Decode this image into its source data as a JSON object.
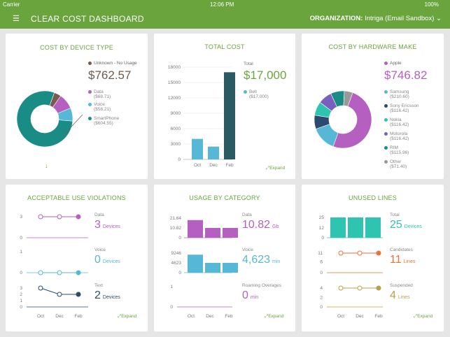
{
  "statusbar": {
    "carrier": "Carrier",
    "time": "12:06 PM",
    "battery": "100%"
  },
  "header": {
    "menu_icon": "hamburger-icon",
    "title": "CLEAR COST DASHBOARD",
    "org_label": "ORGANIZATION:",
    "org_value": "Intriga (Email Sandbox)"
  },
  "device_type": {
    "title": "COST BY DEVICE TYPE",
    "total": "$762.57",
    "legend": [
      {
        "name": "Unknown - No Usage",
        "value": "",
        "color": "#7a5a4a"
      },
      {
        "name": "Data",
        "value": "($68.71)",
        "color": "#b55fc0"
      },
      {
        "name": "Voice",
        "value": "($58.21)",
        "color": "#56b8d6"
      },
      {
        "name": "SmartPhone",
        "value": "($604.55)",
        "color": "#1a8c86"
      }
    ],
    "arrow": "↓"
  },
  "total_cost": {
    "title": "TOTAL COST",
    "total_label": "Total",
    "total": "$17,000",
    "legend_name": "Bell",
    "legend_value": "($17,000)",
    "expand": "⤢Expand"
  },
  "hardware": {
    "title": "COST BY HARDWARE MAKE",
    "legend_top": "Apple",
    "total": "$746.82",
    "legend": [
      {
        "name": "Samsung",
        "value": "($210.60)",
        "color": "#56b8d6"
      },
      {
        "name": "Sony Ericsson",
        "value": "($116.42)",
        "color": "#2c4a6e"
      },
      {
        "name": "Nokia",
        "value": "($116.42)",
        "color": "#2ec4b0"
      },
      {
        "name": "Motorola",
        "value": "($116.42)",
        "color": "#7b5fc0"
      },
      {
        "name": "RIM",
        "value": "($115.96)",
        "color": "#1a8c86"
      },
      {
        "name": "Other",
        "value": "($71.40)",
        "color": "#999999"
      }
    ]
  },
  "violations": {
    "title": "ACCEPTABLE USE VIOLATIONS",
    "rows": [
      {
        "label": "Data",
        "value": "3",
        "unit": "Devices",
        "color": "#b55fc0"
      },
      {
        "label": "Voice",
        "value": "0",
        "unit": "Devices",
        "color": "#56b8d6"
      },
      {
        "label": "Text",
        "value": "2",
        "unit": "Devices",
        "color": "#2c4a6e"
      }
    ],
    "months": [
      "Oct",
      "Dec",
      "Feb"
    ],
    "expand": "⤢Expand"
  },
  "usage": {
    "title": "USAGE BY CATEGORY",
    "rows": [
      {
        "label": "Data",
        "value": "10.82",
        "unit": "Gb",
        "color": "#b55fc0"
      },
      {
        "label": "Voice",
        "value": "4,623",
        "unit": "min",
        "color": "#56b8d6"
      },
      {
        "label": "Roaming Overages",
        "value": "0",
        "unit": "min",
        "color": "#b55fc0"
      }
    ],
    "months": [
      "Oct",
      "Dec",
      "Feb"
    ],
    "expand": "⤢Expand"
  },
  "unused": {
    "title": "UNUSED LINES",
    "rows": [
      {
        "label": "Total",
        "value": "25",
        "unit": "Devices",
        "color": "#2ec4b0"
      },
      {
        "label": "Candidates",
        "value": "11",
        "unit": "Lines",
        "color": "#e8733a"
      },
      {
        "label": "Suspended",
        "value": "4",
        "unit": "Lines",
        "color": "#b8a04a"
      }
    ],
    "months": [
      "Oct",
      "Dec",
      "Feb"
    ],
    "expand": "⤢Expand"
  },
  "chart_data": [
    {
      "type": "pie",
      "title": "COST BY DEVICE TYPE",
      "categories": [
        "Unknown - No Usage",
        "Data",
        "Voice",
        "SmartPhone"
      ],
      "values": [
        31.1,
        68.71,
        58.21,
        604.55
      ],
      "colors": [
        "#7a5a4a",
        "#b55fc0",
        "#56b8d6",
        "#1a8c86"
      ]
    },
    {
      "type": "bar",
      "title": "TOTAL COST",
      "categories": [
        "Oct",
        "Dec",
        "Feb"
      ],
      "series": [
        {
          "name": "",
          "values": [
            4000,
            2500,
            0
          ],
          "color": "#56b8d6"
        },
        {
          "name": "Bell",
          "values": [
            0,
            0,
            17000
          ],
          "color": "#2c5a62"
        }
      ],
      "yticks": [
        0,
        3000,
        6000,
        9000,
        12000,
        15000,
        18000
      ],
      "ylim": [
        0,
        18000
      ]
    },
    {
      "type": "pie",
      "title": "COST BY HARDWARE MAKE",
      "categories": [
        "Apple",
        "Samsung",
        "Sony Ericsson",
        "Nokia",
        "Motorola",
        "RIM",
        "Other"
      ],
      "values": [
        746.82,
        210.6,
        116.42,
        116.42,
        116.42,
        115.96,
        71.4
      ],
      "colors": [
        "#b55fc0",
        "#56b8d6",
        "#2c4a6e",
        "#2ec4b0",
        "#7b5fc0",
        "#1a8c86",
        "#999999"
      ]
    },
    {
      "type": "line",
      "title": "Data violations",
      "x": [
        "Oct",
        "Dec",
        "Feb"
      ],
      "values": [
        3,
        3,
        3
      ],
      "yticks": [
        0,
        3
      ],
      "color": "#b55fc0"
    },
    {
      "type": "line",
      "title": "Voice violations",
      "x": [
        "Oct",
        "Dec",
        "Feb"
      ],
      "values": [
        0,
        0,
        0
      ],
      "yticks": [
        0,
        1
      ],
      "color": "#56b8d6"
    },
    {
      "type": "line",
      "title": "Text violations",
      "x": [
        "Oct",
        "Dec",
        "Feb"
      ],
      "values": [
        3,
        2,
        2
      ],
      "yticks": [
        0,
        1,
        2,
        3
      ],
      "color": "#2c4a6e"
    },
    {
      "type": "bar",
      "title": "Data usage",
      "categories": [
        "Oct",
        "Dec",
        "Feb"
      ],
      "values": [
        19.5,
        10.82,
        10.82
      ],
      "yticks": [
        "0",
        "10.82",
        "21.64"
      ],
      "ylim": [
        0,
        21.64
      ],
      "color": "#b55fc0"
    },
    {
      "type": "bar",
      "title": "Voice usage",
      "categories": [
        "Oct",
        "Dec",
        "Feb"
      ],
      "values": [
        8500,
        4623,
        4623
      ],
      "yticks": [
        "0",
        "4623",
        "9246"
      ],
      "ylim": [
        0,
        9246
      ],
      "color": "#56b8d6"
    },
    {
      "type": "line",
      "title": "Roaming Overages",
      "x": [
        "Oct",
        "Dec",
        "Feb"
      ],
      "values": [
        0,
        0,
        0
      ],
      "yticks": [
        0,
        1
      ],
      "color": "#b55fc0"
    },
    {
      "type": "bar",
      "title": "Total unused",
      "categories": [
        "Oct",
        "Dec",
        "Feb"
      ],
      "values": [
        25,
        25,
        25
      ],
      "yticks": [
        0,
        12,
        25
      ],
      "ylim": [
        0,
        25
      ],
      "color": "#2ec4b0"
    },
    {
      "type": "line",
      "title": "Candidates",
      "x": [
        "Oct",
        "Dec",
        "Feb"
      ],
      "values": [
        11,
        11,
        11
      ],
      "yticks": [
        0,
        6,
        11
      ],
      "ylim": [
        0,
        11
      ],
      "color": "#e8733a"
    },
    {
      "type": "line",
      "title": "Suspended",
      "x": [
        "Oct",
        "Dec",
        "Feb"
      ],
      "values": [
        4,
        4,
        4
      ],
      "yticks": [
        0,
        2,
        4
      ],
      "ylim": [
        0,
        4
      ],
      "color": "#b8a04a"
    }
  ]
}
